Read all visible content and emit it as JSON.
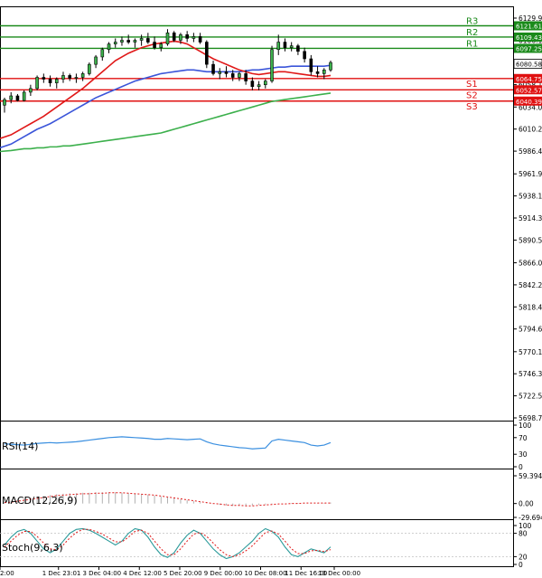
{
  "chart_data": {
    "type": "candlestick",
    "price_axis": {
      "ticks": [
        "6129.90",
        "6106.10",
        "6082.30",
        "6058.10",
        "6034.00",
        "6010.20",
        "5986.40",
        "5961.90",
        "5938.10",
        "5914.30",
        "5890.50",
        "5866.00",
        "5842.20",
        "5818.40",
        "5794.60",
        "5770.10",
        "5746.30",
        "5722.50",
        "5698.70"
      ],
      "range": [
        5698.7,
        6129.9
      ],
      "current_price": "6080.58"
    },
    "time_axis": {
      "labels": [
        "2:00",
        "1 Dec 23:01",
        "3 Dec 04:00",
        "4 Dec 12:00",
        "5 Dec 20:00",
        "9 Dec 00:00",
        "10 Dec 08:00",
        "11 Dec 16:00",
        "13 Dec 00:00"
      ]
    },
    "levels": [
      {
        "label": "R3",
        "value": "6121.61",
        "price": 6121.61,
        "color": "#1a8a1a"
      },
      {
        "label": "R2",
        "value": "6109.43",
        "price": 6109.43,
        "color": "#1a8a1a"
      },
      {
        "label": "R1",
        "value": "6097.25",
        "price": 6097.25,
        "color": "#1a8a1a"
      },
      {
        "label": "S1",
        "value": "6064.75",
        "price": 6064.75,
        "color": "#e01010"
      },
      {
        "label": "S2",
        "value": "6052.57",
        "price": 6052.57,
        "color": "#e01010"
      },
      {
        "label": "S3",
        "value": "6040.39",
        "price": 6040.39,
        "color": "#e01010"
      }
    ],
    "candles": [
      [
        6036,
        6044,
        6028,
        6042
      ],
      [
        6042,
        6050,
        6038,
        6046
      ],
      [
        6046,
        6048,
        6040,
        6041
      ],
      [
        6041,
        6052,
        6040,
        6050
      ],
      [
        6050,
        6058,
        6046,
        6054
      ],
      [
        6054,
        6068,
        6052,
        6066
      ],
      [
        6066,
        6070,
        6060,
        6064
      ],
      [
        6064,
        6068,
        6056,
        6060
      ],
      [
        6060,
        6066,
        6054,
        6064
      ],
      [
        6064,
        6072,
        6060,
        6068
      ],
      [
        6068,
        6070,
        6062,
        6065
      ],
      [
        6065,
        6070,
        6060,
        6066
      ],
      [
        6066,
        6072,
        6062,
        6070
      ],
      [
        6070,
        6082,
        6068,
        6080
      ],
      [
        6080,
        6090,
        6076,
        6088
      ],
      [
        6088,
        6098,
        6084,
        6096
      ],
      [
        6096,
        6104,
        6092,
        6102
      ],
      [
        6102,
        6108,
        6098,
        6104
      ],
      [
        6104,
        6110,
        6100,
        6106
      ],
      [
        6106,
        6112,
        6102,
        6104
      ],
      [
        6104,
        6108,
        6098,
        6106
      ],
      [
        6106,
        6112,
        6100,
        6108
      ],
      [
        6108,
        6114,
        6102,
        6104
      ],
      [
        6104,
        6110,
        6096,
        6098
      ],
      [
        6098,
        6104,
        6094,
        6102
      ],
      [
        6102,
        6118,
        6100,
        6114
      ],
      [
        6114,
        6116,
        6104,
        6106
      ],
      [
        6106,
        6114,
        6102,
        6112
      ],
      [
        6112,
        6116,
        6104,
        6108
      ],
      [
        6108,
        6114,
        6104,
        6110
      ],
      [
        6110,
        6114,
        6102,
        6104
      ],
      [
        6104,
        6106,
        6076,
        6080
      ],
      [
        6080,
        6084,
        6068,
        6070
      ],
      [
        6070,
        6076,
        6064,
        6072
      ],
      [
        6072,
        6078,
        6066,
        6070
      ],
      [
        6070,
        6074,
        6062,
        6066
      ],
      [
        6066,
        6072,
        6062,
        6070
      ],
      [
        6070,
        6074,
        6058,
        6062
      ],
      [
        6062,
        6066,
        6052,
        6056
      ],
      [
        6056,
        6062,
        6052,
        6058
      ],
      [
        6058,
        6064,
        6054,
        6062
      ],
      [
        6062,
        6100,
        6060,
        6096
      ],
      [
        6096,
        6112,
        6090,
        6104
      ],
      [
        6104,
        6108,
        6094,
        6098
      ],
      [
        6098,
        6104,
        6094,
        6100
      ],
      [
        6100,
        6102,
        6090,
        6094
      ],
      [
        6094,
        6098,
        6082,
        6086
      ],
      [
        6086,
        6090,
        6068,
        6072
      ],
      [
        6072,
        6078,
        6066,
        6070
      ],
      [
        6070,
        6076,
        6064,
        6074
      ],
      [
        6074,
        6084,
        6072,
        6082
      ]
    ],
    "ma_red": [
      6000,
      6004,
      6008,
      6012,
      6016,
      6020,
      6024,
      6029,
      6034,
      6039,
      6044,
      6049,
      6054,
      6060,
      6066,
      6072,
      6078,
      6084,
      6088,
      6092,
      6095,
      6098,
      6100,
      6102,
      6103,
      6104,
      6105,
      6104,
      6102,
      6098,
      6094,
      6090,
      6086,
      6083,
      6080,
      6077,
      6074,
      6072,
      6070,
      6069,
      6070,
      6071,
      6072,
      6072,
      6071,
      6070,
      6069,
      6068,
      6067,
      6067,
      6068
    ],
    "ma_blue": [
      5990,
      5994,
      5998,
      6002,
      6006,
      6010,
      6013,
      6016,
      6020,
      6024,
      6028,
      6032,
      6036,
      6040,
      6044,
      6047,
      6050,
      6053,
      6056,
      6059,
      6062,
      6064,
      6066,
      6068,
      6070,
      6071,
      6072,
      6073,
      6074,
      6074,
      6073,
      6072,
      6072,
      6072,
      6072,
      6072,
      6072,
      6073,
      6074,
      6074,
      6075,
      6076,
      6077,
      6077,
      6078,
      6078,
      6078,
      6078,
      6078,
      6078,
      6079
    ],
    "ma_green": [
      5986,
      5987,
      5988,
      5989,
      5989,
      5990,
      5990,
      5991,
      5991,
      5992,
      5992,
      5993,
      5994,
      5995,
      5996,
      5997,
      5998,
      5999,
      6000,
      6001,
      6002,
      6003,
      6004,
      6005,
      6006,
      6008,
      6010,
      6012,
      6014,
      6016,
      6018,
      6020,
      6022,
      6024,
      6026,
      6028,
      6030,
      6032,
      6034,
      6036,
      6038,
      6040,
      6041,
      6042,
      6043,
      6044,
      6045,
      6046,
      6047,
      6048,
      6049
    ],
    "rsi": {
      "label": "RSI(14)",
      "ticks": [
        "100",
        "70",
        "30",
        "0"
      ],
      "range": [
        0,
        100
      ],
      "values": [
        55,
        54,
        53,
        52,
        54,
        56,
        57,
        58,
        57,
        58,
        59,
        60,
        62,
        64,
        66,
        68,
        70,
        71,
        72,
        71,
        70,
        69,
        68,
        66,
        66,
        68,
        67,
        66,
        65,
        66,
        67,
        60,
        55,
        52,
        50,
        48,
        46,
        45,
        43,
        44,
        45,
        62,
        66,
        64,
        62,
        60,
        58,
        52,
        50,
        52,
        58
      ]
    },
    "macd": {
      "label": "MACD(12,26,9)",
      "ticks": [
        "59.394",
        "0.00",
        "-29.694"
      ],
      "range": [
        -29.694,
        59.394
      ],
      "histogram": [
        4,
        6,
        8,
        10,
        12,
        14,
        16,
        18,
        20,
        21,
        22,
        22,
        23,
        23,
        24,
        24,
        24,
        24,
        23,
        22,
        21,
        20,
        19,
        17,
        15,
        13,
        11,
        9,
        7,
        5,
        3,
        1,
        -1,
        -3,
        -4,
        -5,
        -5,
        -5,
        -4,
        -3,
        -2,
        -1,
        0,
        0,
        1,
        1,
        1,
        1,
        1,
        1,
        2
      ],
      "signal": [
        2,
        3,
        5,
        7,
        9,
        11,
        13,
        15,
        17,
        18,
        19,
        20,
        21,
        21,
        22,
        22,
        23,
        23,
        23,
        22,
        21,
        20,
        19,
        18,
        16,
        14,
        12,
        10,
        8,
        6,
        4,
        2,
        0,
        -1,
        -3,
        -4,
        -4,
        -5,
        -5,
        -4,
        -3,
        -2,
        -1,
        -1,
        0,
        0,
        1,
        1,
        1,
        1,
        1
      ]
    },
    "stoch": {
      "label": "Stoch(9,6,3)",
      "ticks": [
        "100",
        "80",
        "20",
        "0"
      ],
      "range": [
        0,
        100
      ],
      "k": [
        50,
        70,
        85,
        90,
        80,
        60,
        40,
        30,
        40,
        60,
        80,
        90,
        92,
        88,
        80,
        70,
        60,
        50,
        60,
        80,
        92,
        88,
        70,
        45,
        25,
        18,
        30,
        55,
        75,
        88,
        80,
        60,
        40,
        25,
        15,
        20,
        30,
        45,
        60,
        80,
        92,
        85,
        70,
        45,
        25,
        20,
        30,
        40,
        35,
        30,
        45
      ],
      "d": [
        45,
        60,
        75,
        85,
        85,
        72,
        55,
        40,
        38,
        50,
        68,
        82,
        90,
        90,
        85,
        78,
        68,
        58,
        58,
        70,
        85,
        88,
        80,
        60,
        40,
        25,
        25,
        40,
        60,
        78,
        82,
        72,
        55,
        38,
        25,
        20,
        25,
        35,
        48,
        65,
        82,
        86,
        78,
        60,
        40,
        28,
        28,
        35,
        36,
        33,
        38
      ]
    }
  }
}
